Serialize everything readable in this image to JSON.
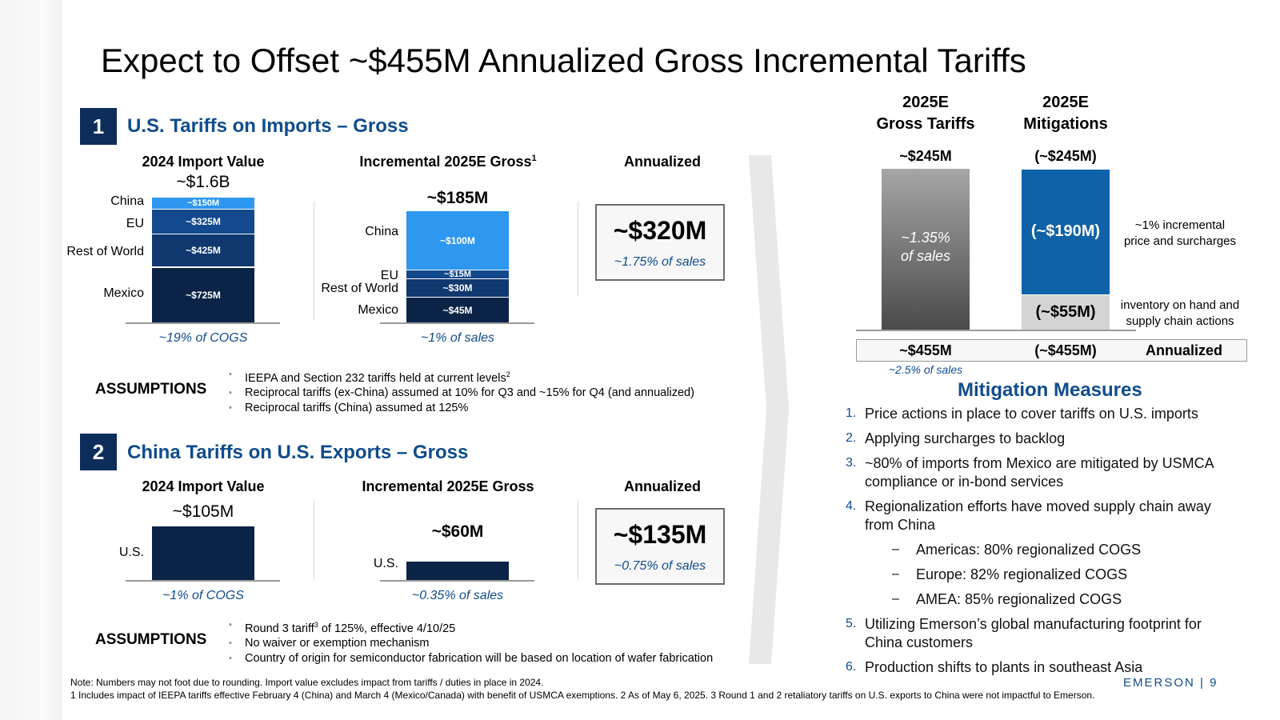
{
  "slide": {
    "title": "Expect to Offset ~$455M Annualized Gross Incremental Tariffs",
    "page_number": "EMERSON | 9"
  },
  "section1": {
    "number": "1",
    "title": "U.S. Tariffs on Imports – Gross",
    "import_value_header": "2024 Import Value",
    "import_total": "~$1.6B",
    "import_pct": "~19% of COGS",
    "incremental_header": "Incremental 2025E Gross",
    "incremental_sup": "1",
    "incremental_total": "~$185M",
    "incremental_pct": "~1% of sales",
    "annualized_header": "Annualized",
    "annualized_value": "~$320M",
    "annualized_pct": "~1.75% of sales",
    "assumptions_label": "ASSUMPTIONS",
    "assumptions": [
      {
        "text": "IEEPA and Section 232 tariffs held at current levels",
        "sup": "2"
      },
      {
        "text": "Reciprocal tariffs (ex-China) assumed at 10% for Q3 and ~15% for Q4 (and annualized)",
        "sup": ""
      },
      {
        "text": "Reciprocal tariffs (China) assumed at 125%",
        "sup": ""
      }
    ]
  },
  "section2": {
    "number": "2",
    "title": "China Tariffs on U.S. Exports – Gross",
    "import_value_header": "2024 Import Value",
    "import_total": "~$105M",
    "import_pct": "~1% of COGS",
    "incremental_header": "Incremental 2025E Gross",
    "incremental_total": "~$60M",
    "incremental_pct": "~0.35% of sales",
    "annualized_header": "Annualized",
    "annualized_value": "~$135M",
    "annualized_pct": "~0.75% of sales",
    "assumptions_label": "ASSUMPTIONS",
    "assumptions": [
      {
        "pre": "Round 3 tariff",
        "sup": "3",
        "post": " of 125%, effective 4/10/25"
      },
      {
        "pre": "No waiver or exemption mechanism",
        "sup": "",
        "post": ""
      },
      {
        "pre": "Country of origin for semiconductor fabrication will be based on location of wafer fabrication",
        "sup": "",
        "post": ""
      }
    ]
  },
  "chart_data": [
    {
      "type": "bar",
      "stacked": true,
      "title": "2024 Import Value",
      "categories": [
        "2024 Import Value"
      ],
      "series": [
        {
          "name": "Mexico",
          "values": [
            725
          ],
          "label": "~$725M",
          "color": "#0b2347"
        },
        {
          "name": "Rest of World",
          "values": [
            425
          ],
          "label": "~$425M",
          "color": "#10386f"
        },
        {
          "name": "EU",
          "values": [
            325
          ],
          "label": "~$325M",
          "color": "#124a8d"
        },
        {
          "name": "China",
          "values": [
            150
          ],
          "label": "~$150M",
          "color": "#2e97f0"
        }
      ],
      "total_label": "~$1.6B",
      "annotation": "~19% of COGS"
    },
    {
      "type": "bar",
      "stacked": true,
      "title": "Incremental 2025E Gross",
      "categories": [
        "Incremental 2025E Gross"
      ],
      "series": [
        {
          "name": "Mexico",
          "values": [
            45
          ],
          "label": "~$45M",
          "color": "#0b2347"
        },
        {
          "name": "Rest of World",
          "values": [
            30
          ],
          "label": "~$30M",
          "color": "#10386f"
        },
        {
          "name": "EU",
          "values": [
            15
          ],
          "label": "~$15M",
          "color": "#124a8d"
        },
        {
          "name": "China",
          "values": [
            100
          ],
          "label": "~$100M",
          "color": "#2e97f0"
        }
      ],
      "total_label": "~$185M",
      "annotation": "~1% of sales"
    },
    {
      "type": "bar",
      "title": "2024 Import Value",
      "categories": [
        "U.S."
      ],
      "values": [
        105
      ],
      "total_label": "~$105M",
      "annotation": "~1% of COGS",
      "color": "#0b2347"
    },
    {
      "type": "bar",
      "title": "Incremental 2025E Gross",
      "categories": [
        "U.S."
      ],
      "values": [
        60
      ],
      "total_label": "~$60M",
      "annotation": "~0.35% of sales",
      "color": "#0b2347"
    },
    {
      "type": "bar",
      "stacked": true,
      "categories": [
        "2025E Gross Tariffs",
        "2025E Mitigations"
      ],
      "series": [
        {
          "name": "Gross Tariffs",
          "values": [
            245,
            0
          ],
          "label": "~$245M"
        },
        {
          "name": "inventory on hand and supply chain actions",
          "values": [
            0,
            55
          ],
          "label": "(~$55M)",
          "color": "#d4d4d4"
        },
        {
          "name": "~1% incremental price and surcharges",
          "values": [
            0,
            190
          ],
          "label": "(~$190M)",
          "color": "#0f62a8"
        }
      ],
      "totals": [
        "~$245M",
        "(~$245M)"
      ],
      "gross_bar_text": "~1.35% of sales"
    }
  ],
  "right": {
    "col1_header": "2025E Gross Tariffs",
    "col1_header_l1": "2025E",
    "col1_header_l2": "Gross Tariffs",
    "col2_header_l1": "2025E",
    "col2_header_l2": "Mitigations",
    "col1_total": "~$245M",
    "col2_total": "(~$245M)",
    "gross_bar_l1": "~1.35%",
    "gross_bar_l2": "of sales",
    "mit_top_value": "(~$190M)",
    "mit_bottom_value": "(~$55M)",
    "mit_top_label_l1": "~1% incremental",
    "mit_top_label_l2": "price and surcharges",
    "mit_bottom_label_l1": "inventory on hand and",
    "mit_bottom_label_l2": "supply chain actions",
    "annual_gross": "~$455M",
    "annual_mit": "(~$455M)",
    "annual_label": "Annualized",
    "annual_pct": "~2.5% of sales"
  },
  "mitigation": {
    "title": "Mitigation Measures",
    "items": [
      {
        "num": "1.",
        "lines": [
          "Price actions in place to cover tariffs on U.S. imports"
        ]
      },
      {
        "num": "2.",
        "lines": [
          "Applying surcharges to backlog"
        ]
      },
      {
        "num": "3.",
        "lines": [
          "~80% of imports from Mexico are mitigated by USMCA",
          "compliance or in-bond services"
        ]
      },
      {
        "num": "4.",
        "lines": [
          "Regionalization efforts have moved supply chain away",
          "from China"
        ]
      },
      {
        "num": "5.",
        "lines": [
          "Utilizing Emerson’s global manufacturing footprint for",
          "China customers"
        ]
      },
      {
        "num": "6.",
        "lines": [
          "Production shifts to plants in southeast Asia"
        ]
      }
    ],
    "sub_items": [
      "Americas: 80% regionalized COGS",
      "Europe: 82% regionalized COGS",
      "AMEA: 85% regionalized COGS"
    ],
    "dash": "–"
  },
  "notes": {
    "line1": "Note: Numbers may not foot due to rounding. Import value excludes impact from tariffs / duties in place in 2024.",
    "line2": "1 Includes impact of IEEPA tariffs effective February 4 (China) and March 4 (Mexico/Canada) with benefit of USMCA exemptions. 2 As of May 6, 2025. 3 Round 1 and 2 retaliatory tariffs on U.S. exports to China were not impactful to Emerson."
  }
}
